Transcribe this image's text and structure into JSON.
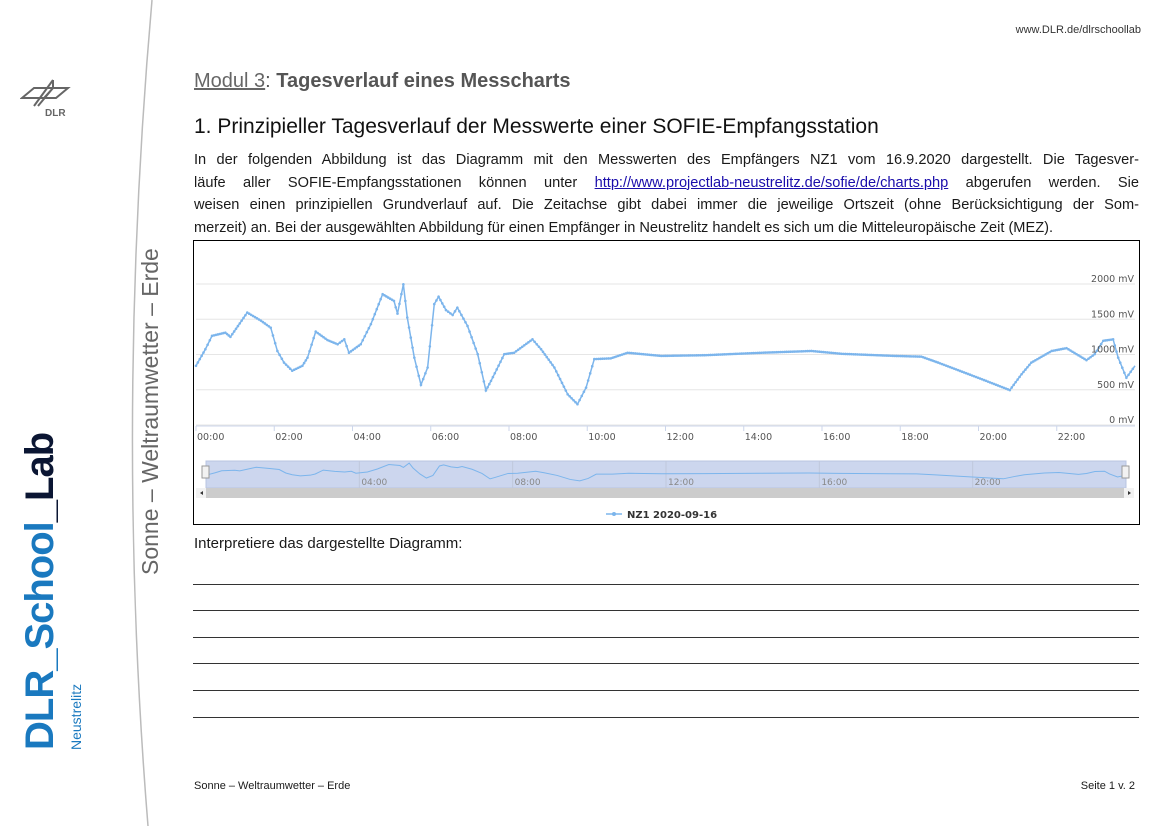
{
  "header": {
    "url": "www.DLR.de/dlrschoollab"
  },
  "logo": {
    "dlr_text": "DLR",
    "school_lab_part1": "DLR_School",
    "school_lab_part2": "_Lab",
    "location": "Neustrelitz"
  },
  "side_title": "Sonne – Weltraumwetter – Erde",
  "title": {
    "modul_label": "Modul 3",
    "separator": ": ",
    "modul_title": "Tagesverlauf eines Messcharts"
  },
  "section_heading": "1.  Prinzipieller Tagesverlauf der Messwerte einer SOFIE-Empfangsstation",
  "paragraph": {
    "line1": "In der folgenden Abbildung ist das Diagramm mit den Messwerten des Empfängers NZ1 vom 16.9.2020 dargestellt. Die Tagesver-",
    "line2_before": "läufe aller SOFIE-Empfangsstationen können unter ",
    "link": "http://www.projectlab-neustrelitz.de/sofie/de/charts.php",
    "line2_after": " abgerufen werden. Sie",
    "line3": "weisen einen prinzipiellen Grundverlauf auf. Die Zeitachse gibt dabei immer die jeweilige Ortszeit (ohne Berücksichtigung der Som-",
    "line4": "merzeit) an. Bei der ausgewählten Abbildung für einen Empfänger in Neustrelitz handelt es sich um die Mitteleuropäische Zeit (MEZ)."
  },
  "chart_data": {
    "type": "line",
    "series": [
      {
        "name": "NZ1 2020-09-16",
        "color": "#7cb5ec",
        "x": [
          0,
          0.24,
          0.41,
          0.75,
          0.88,
          1.31,
          1.66,
          1.91,
          2.08,
          2.25,
          2.46,
          2.72,
          2.85,
          3.06,
          3.36,
          3.62,
          3.79,
          3.91,
          4.21,
          4.47,
          4.77,
          5.06,
          5.15,
          5.3,
          5.4,
          5.58,
          5.75,
          5.92,
          6.09,
          6.2,
          6.39,
          6.56,
          6.68,
          6.94,
          7.2,
          7.41,
          7.54,
          7.88,
          8.13,
          8.6,
          8.82,
          9.16,
          9.5,
          9.75,
          9.97,
          10.18,
          10.6,
          11.03,
          11.89,
          13,
          14.45,
          15.73,
          16.5,
          17.86,
          18.54,
          18.97,
          19.99,
          20.8,
          21.1,
          21.35,
          21.87,
          22.25,
          22.76,
          22.97,
          23.19,
          23.44,
          23.57,
          23.78,
          24
        ],
        "y": [
          840,
          1075,
          1265,
          1310,
          1250,
          1595,
          1480,
          1380,
          1050,
          885,
          770,
          840,
          955,
          1325,
          1205,
          1145,
          1215,
          1025,
          1145,
          1430,
          1855,
          1760,
          1580,
          1995,
          1525,
          955,
          570,
          815,
          1715,
          1820,
          1630,
          1560,
          1665,
          1405,
          1005,
          490,
          625,
          1005,
          1025,
          1215,
          1075,
          815,
          435,
          295,
          530,
          935,
          945,
          1025,
          980,
          990,
          1025,
          1050,
          1010,
          980,
          970,
          885,
          670,
          495,
          720,
          885,
          1050,
          1090,
          920,
          1005,
          1195,
          1215,
          955,
          670,
          840
        ]
      }
    ],
    "x_ticks": [
      "00:00",
      "02:00",
      "04:00",
      "06:00",
      "08:00",
      "10:00",
      "12:00",
      "14:00",
      "16:00",
      "18:00",
      "20:00",
      "22:00"
    ],
    "y_ticks": [
      "0 mV",
      "500 mV",
      "1000 mV",
      "1500 mV",
      "2000 mV"
    ],
    "y_tick_values": [
      0,
      500,
      1000,
      1500,
      2000
    ],
    "xlim": [
      0,
      24
    ],
    "ylim": [
      0,
      2000
    ],
    "grid": true,
    "navigator_ticks": [
      "04:00",
      "08:00",
      "12:00",
      "16:00",
      "20:00"
    ],
    "legend": "bottom-center"
  },
  "prompt": "Interpretiere das dargestellte Diagramm:",
  "footer": {
    "left": "Sonne – Weltraumwetter – Erde",
    "right": "Seite 1 v. 2"
  }
}
